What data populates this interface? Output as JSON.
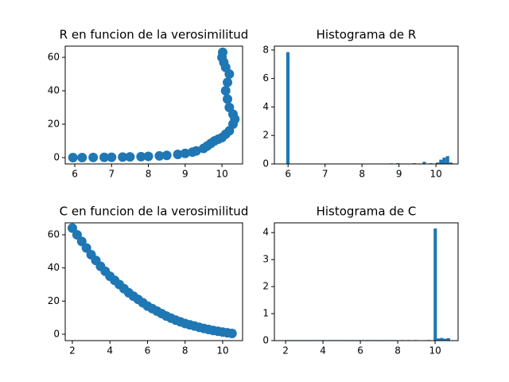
{
  "chart_data": [
    {
      "type": "scatter",
      "title": "R en funcion de la verosimilitud",
      "color": "#1f77b4",
      "x": [
        5.95,
        6.2,
        6.5,
        6.8,
        7.0,
        7.3,
        7.5,
        7.8,
        8.0,
        8.3,
        8.5,
        8.8,
        9.0,
        9.2,
        9.3,
        9.5,
        9.6,
        9.7,
        9.8,
        9.9,
        10.0,
        10.1,
        10.2,
        10.3,
        10.35,
        10.3,
        10.2,
        10.15,
        10.1,
        10.15,
        10.2,
        10.1,
        10.05,
        10.0,
        10.02
      ],
      "values": [
        0,
        0,
        0.1,
        0.15,
        0.2,
        0.3,
        0.4,
        0.55,
        0.7,
        1.0,
        1.3,
        1.9,
        2.5,
        3.3,
        4,
        5.5,
        7,
        8.5,
        10,
        11,
        12,
        14,
        16,
        20,
        23,
        26,
        30,
        35,
        40,
        45,
        50,
        54,
        57,
        60,
        63
      ],
      "xlim": [
        5.74,
        10.56
      ],
      "ylim": [
        -3.8,
        66.7
      ],
      "xticks": [
        6,
        7,
        8,
        9,
        10
      ],
      "yticks": [
        0,
        20,
        40,
        60
      ]
    },
    {
      "type": "histogram",
      "title": "Histograma de R",
      "color": "#1f77b4",
      "bins": [
        5.95,
        6.04,
        6.13,
        6.22,
        6.31,
        6.4,
        6.49,
        6.58,
        6.67,
        6.76,
        6.85,
        6.94,
        7.03,
        7.12,
        7.21,
        7.3,
        7.39,
        7.48,
        7.57,
        7.66,
        7.75,
        7.84,
        7.93,
        8.02,
        8.11,
        8.2,
        8.29,
        8.38,
        8.47,
        8.56,
        8.65,
        8.74,
        8.83,
        8.92,
        9.01,
        9.1,
        9.19,
        9.28,
        9.37,
        9.46,
        9.55,
        9.64,
        9.73,
        9.82,
        9.91,
        10.0,
        10.09,
        10.18,
        10.27,
        10.36,
        10.45
      ],
      "values": [
        7.85,
        0,
        0,
        0,
        0,
        0,
        0,
        0,
        0,
        0,
        0,
        0,
        0,
        0,
        0,
        0,
        0,
        0,
        0,
        0,
        0,
        0,
        0,
        0,
        0,
        0,
        0,
        0,
        0,
        0,
        0,
        0.04,
        0,
        0.05,
        0,
        0,
        0.03,
        0,
        0.05,
        0,
        0,
        0.15,
        0,
        0.05,
        0,
        0.1,
        0.3,
        0.45,
        0.55,
        0.1
      ],
      "xlim": [
        5.63,
        10.6
      ],
      "ylim": [
        0,
        8.27
      ],
      "xticks": [
        6,
        7,
        8,
        9,
        10
      ],
      "yticks": [
        0,
        2,
        4,
        6,
        8
      ]
    },
    {
      "type": "scatter",
      "title": "C en funcion de la verosimilitud",
      "color": "#1f77b4",
      "x": [
        2.0,
        2.25,
        2.5,
        2.75,
        3.0,
        3.25,
        3.5,
        3.75,
        4.0,
        4.25,
        4.5,
        4.75,
        5.0,
        5.25,
        5.5,
        5.75,
        6.0,
        6.25,
        6.5,
        6.75,
        7.0,
        7.25,
        7.5,
        7.75,
        8.0,
        8.25,
        8.5,
        8.75,
        9.0,
        9.25,
        9.5,
        9.75,
        10.0,
        10.25,
        10.5
      ],
      "values": [
        64,
        60,
        56,
        52,
        48,
        44.5,
        41,
        38,
        35,
        32.5,
        30,
        27.5,
        25,
        23,
        21,
        19,
        17,
        15.5,
        14,
        12.5,
        11,
        9.7,
        8.5,
        7.5,
        6.5,
        5.7,
        5,
        4.2,
        3.5,
        2.9,
        2.3,
        1.8,
        1.3,
        0.9,
        0.5
      ],
      "xlim": [
        1.62,
        11.06
      ],
      "ylim": [
        -3.84,
        67.2
      ],
      "xticks": [
        2,
        4,
        6,
        8,
        10
      ],
      "yticks": [
        0,
        20,
        40,
        60
      ]
    },
    {
      "type": "histogram",
      "title": "Histograma de C",
      "color": "#1f77b4",
      "bins": [
        2,
        2.176,
        2.352,
        2.528,
        2.704,
        2.88,
        3.056,
        3.232,
        3.408,
        3.584,
        3.76,
        3.936,
        4.112,
        4.288,
        4.464,
        4.64,
        4.816,
        4.992,
        5.168,
        5.344,
        5.52,
        5.696,
        5.872,
        6.048,
        6.224,
        6.4,
        6.576,
        6.752,
        6.928,
        7.104,
        7.28,
        7.456,
        7.632,
        7.808,
        7.984,
        8.16,
        8.336,
        8.512,
        8.688,
        8.864,
        9.04,
        9.216,
        9.392,
        9.568,
        9.744,
        9.92,
        10.096,
        10.272,
        10.448,
        10.624,
        10.8
      ],
      "values": [
        0.02,
        0.02,
        0.02,
        0.02,
        0.02,
        0.02,
        0.02,
        0.02,
        0.02,
        0.02,
        0.02,
        0.02,
        0.02,
        0.02,
        0.02,
        0.02,
        0.02,
        0.02,
        0.02,
        0.02,
        0.02,
        0.02,
        0.02,
        0.02,
        0.02,
        0.02,
        0.02,
        0.02,
        0.02,
        0.02,
        0.02,
        0.02,
        0.02,
        0.02,
        0,
        0.02,
        0,
        0.02,
        0,
        0.02,
        0,
        0,
        0,
        0.02,
        0,
        4.15,
        0.08,
        0.1,
        0.07,
        0.09
      ],
      "xlim": [
        1.4,
        11.23
      ],
      "ylim": [
        0,
        4.36
      ],
      "xticks": [
        2,
        4,
        6,
        8,
        10
      ],
      "yticks": [
        0,
        1,
        2,
        3,
        4
      ]
    }
  ]
}
